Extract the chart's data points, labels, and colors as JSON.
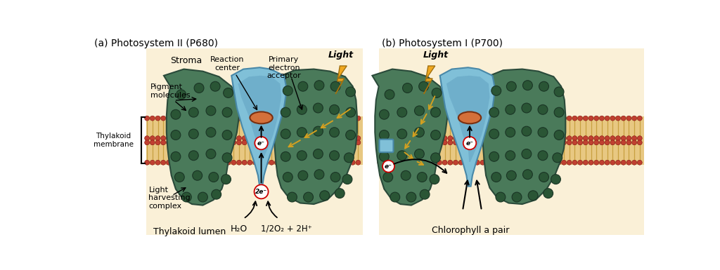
{
  "bg_color": "#FAF0D7",
  "white_bg": "#FFFFFF",
  "membrane_tan": "#E8C882",
  "membrane_gold": "#C8A040",
  "green_dark": "#4A7A5A",
  "green_mid": "#5A8A6A",
  "blue_light": "#80C0D8",
  "blue_mid": "#60A0C0",
  "blue_dark": "#4888A8",
  "orange_pigment": "#D4703A",
  "red_head": "#C04030",
  "yellow_lightning": "#F0A820",
  "arrow_yellow": "#D4A020",
  "black": "#000000",
  "white": "#FFFFFF",
  "title_a": "(a) Photosystem II (P680)",
  "title_b": "(b) Photosystem I (P700)",
  "label_stroma": "Stroma",
  "label_lumen": "Thylakoid lumen",
  "label_membrane": "Thylakoid\nmembrane",
  "label_pigment": "Pigment\nmolecules",
  "label_reaction": "Reaction\ncenter",
  "label_primary": "Primary\nelectron\nacceptor",
  "label_light_a": "Light",
  "label_light_b": "Light",
  "label_lhc": "Light\nharvesting\ncomplex",
  "label_water": "H₂O",
  "label_oxygen": "1/2O₂ + 2H⁺",
  "label_2e": "2e⁻",
  "label_chlorophyll": "Chlorophyll a pair"
}
